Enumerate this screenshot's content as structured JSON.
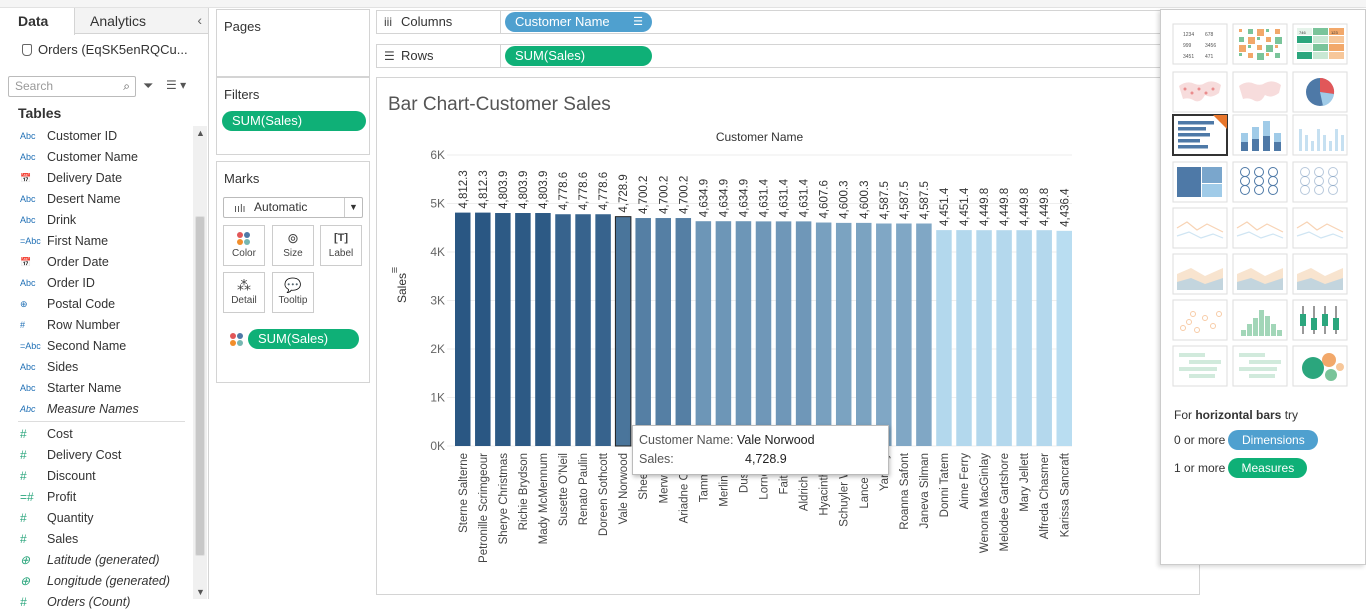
{
  "data_pane": {
    "tabs": [
      "Data",
      "Analytics"
    ],
    "collapse_glyph": "‹",
    "source": "Orders (EqSK5enRQCu...",
    "search_placeholder": "Search",
    "tables_heading": "Tables",
    "fields": [
      {
        "type": "Abc",
        "name": "Customer ID",
        "kind": "dim"
      },
      {
        "type": "Abc",
        "name": "Customer Name",
        "kind": "dim"
      },
      {
        "type": "📅",
        "name": "Delivery Date",
        "kind": "dim"
      },
      {
        "type": "Abc",
        "name": "Desert Name",
        "kind": "dim"
      },
      {
        "type": "Abc",
        "name": "Drink",
        "kind": "dim"
      },
      {
        "type": "=Abc",
        "name": "First Name",
        "kind": "dim"
      },
      {
        "type": "📅",
        "name": "Order Date",
        "kind": "dim"
      },
      {
        "type": "Abc",
        "name": "Order ID",
        "kind": "dim"
      },
      {
        "type": "⊕",
        "name": "Postal Code",
        "kind": "dim"
      },
      {
        "type": "#",
        "name": "Row Number",
        "kind": "dim"
      },
      {
        "type": "=Abc",
        "name": "Second Name",
        "kind": "dim"
      },
      {
        "type": "Abc",
        "name": "Sides",
        "kind": "dim"
      },
      {
        "type": "Abc",
        "name": "Starter Name",
        "kind": "dim"
      },
      {
        "type": "Abc",
        "name": "Measure Names",
        "kind": "dim",
        "italic": true
      }
    ],
    "measures": [
      {
        "type": "#",
        "name": "Cost"
      },
      {
        "type": "#",
        "name": "Delivery Cost"
      },
      {
        "type": "#",
        "name": "Discount"
      },
      {
        "type": "=#",
        "name": "Profit"
      },
      {
        "type": "#",
        "name": "Quantity"
      },
      {
        "type": "#",
        "name": "Sales"
      },
      {
        "type": "⊕",
        "name": "Latitude (generated)",
        "italic": true
      },
      {
        "type": "⊕",
        "name": "Longitude (generated)",
        "italic": true
      },
      {
        "type": "#",
        "name": "Orders (Count)",
        "italic": true
      }
    ]
  },
  "pages_card": {
    "title": "Pages"
  },
  "filters_card": {
    "title": "Filters",
    "pill": "SUM(Sales)"
  },
  "marks_card": {
    "title": "Marks",
    "mark_type": "Automatic",
    "buttons": [
      "Color",
      "Size",
      "Label",
      "Detail",
      "Tooltip"
    ],
    "pill": "SUM(Sales)"
  },
  "shelves": {
    "columns_label": "Columns",
    "columns_pill": "Customer Name",
    "rows_label": "Rows",
    "rows_pill": "SUM(Sales)"
  },
  "view": {
    "title": "Bar Chart-Customer Sales"
  },
  "chart_data": {
    "type": "bar",
    "title": "Bar Chart-Customer Sales",
    "xlabel": "Customer Name",
    "ylabel": "Sales",
    "ylim": [
      0,
      6000
    ],
    "yticks": [
      "0K",
      "1K",
      "2K",
      "3K",
      "4K",
      "5K",
      "6K"
    ],
    "categories": [
      "Sterne Salterne",
      "Petronille Scrimgeour",
      "Sherye Christmas",
      "Richie Brydson",
      "Mady McMennum",
      "Susette O'Neil",
      "Renato Paulin",
      "Doreen Sothcott",
      "Vale Norwood",
      "Sheela S",
      "Merwin Pi",
      "Ariadne Cope",
      "Tamma C",
      "Merlina Le",
      "Dusty Y",
      "Lorne Bo",
      "Faith Gr",
      "Aldrich Phy",
      "Hyacintha H",
      "Schuyler Wale",
      "Lance Che",
      "Yardley",
      "Roanna Safont",
      "Janeva Silman",
      "Donni Tatem",
      "Aime Ferry",
      "Wenona MacGinlay",
      "Melodee Gartshore",
      "Mary Jellett",
      "Alfreda Chasmer",
      "Karissa Sancraft"
    ],
    "values": [
      4812.3,
      4812.3,
      4803.9,
      4803.9,
      4803.9,
      4778.6,
      4778.6,
      4778.6,
      4728.9,
      4700.2,
      4700.2,
      4700.2,
      4634.9,
      4634.9,
      4634.9,
      4631.4,
      4631.4,
      4631.4,
      4607.6,
      4600.3,
      4600.3,
      4587.5,
      4587.5,
      4587.5,
      4451.4,
      4451.4,
      4449.8,
      4449.8,
      4449.8,
      4449.8,
      4436.4
    ],
    "labels": [
      "4,812.3",
      "4,812.3",
      "4,803.9",
      "4,803.9",
      "4,803.9",
      "4,778.6",
      "4,778.6",
      "4,778.6",
      "4,728.9",
      "4,700.2",
      "4,700.2",
      "4,700.2",
      "4,634.9",
      "4,634.9",
      "4,634.9",
      "4,631.4",
      "4,631.4",
      "4,631.4",
      "4,607.6",
      "4,600.3",
      "4,600.3",
      "4,587.5",
      "4,587.5",
      "4,587.5",
      "4,451.4",
      "4,451.4",
      "4,449.8",
      "4,449.8",
      "4,449.8",
      "4,449.8",
      "4,436.4"
    ],
    "color_range": [
      "#2a5783",
      "#b9ddf1"
    ],
    "highlighted": "Vale Norwood"
  },
  "tooltip": {
    "name_label": "Customer Name:",
    "name_value": "Vale Norwood",
    "sales_label": "Sales:",
    "sales_value": "4,728.9"
  },
  "show_me": {
    "hint_prefix": "For",
    "hint_bold": "horizontal bars",
    "hint_suffix": "try",
    "dim_prefix": "0 or more",
    "dim_tag": "Dimensions",
    "mea_prefix": "1 or more",
    "mea_tag": "Measures",
    "thumb_texts": [
      "1234",
      "678",
      "999",
      "3456",
      "3451",
      "471",
      "322",
      "746",
      "123"
    ]
  }
}
